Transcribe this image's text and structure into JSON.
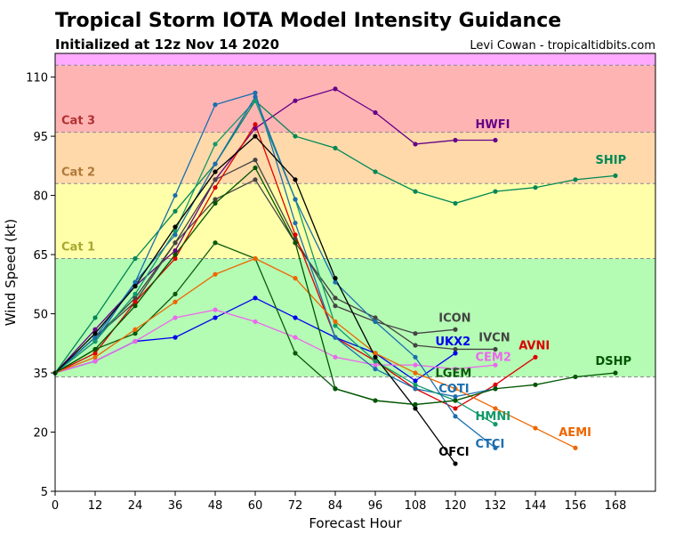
{
  "header": {
    "title": "Tropical Storm IOTA Model Intensity Guidance",
    "subtitle": "Initialized at 12z Nov 14 2020",
    "credit": "Levi Cowan - tropicaltidbits.com"
  },
  "chart_data": {
    "type": "line",
    "xlabel": "Forecast Hour",
    "ylabel": "Wind Speed (kt)",
    "xlim": [
      0,
      180
    ],
    "ylim": [
      5,
      116
    ],
    "xticks": [
      0,
      12,
      24,
      36,
      48,
      60,
      72,
      84,
      96,
      108,
      120,
      132,
      144,
      156,
      168
    ],
    "yticks": [
      5,
      20,
      35,
      50,
      65,
      80,
      95,
      110
    ],
    "bands": [
      {
        "from": 5,
        "to": 34,
        "color": "#ffffff"
      },
      {
        "from": 34,
        "to": 64,
        "color": "#b4fbb4"
      },
      {
        "from": 64,
        "to": 83,
        "color": "#ffffaa"
      },
      {
        "from": 83,
        "to": 96,
        "color": "#ffd9aa"
      },
      {
        "from": 96,
        "to": 113,
        "color": "#ffb4b4"
      },
      {
        "from": 113,
        "to": 116,
        "color": "#ffaaff"
      }
    ],
    "thresholds": [
      34,
      64,
      83,
      96,
      113
    ],
    "category_labels": [
      {
        "text": "Cat 3",
        "y": 96,
        "color": "#b03030"
      },
      {
        "text": "Cat 2",
        "y": 83,
        "color": "#b07a3a"
      },
      {
        "text": "Cat 1",
        "y": 64,
        "color": "#a8a830"
      }
    ],
    "series": [
      {
        "name": "HWFI",
        "color": "#660088",
        "x": [
          0,
          12,
          24,
          36,
          48,
          60,
          72,
          84,
          96,
          108,
          120,
          132
        ],
        "values": [
          35,
          46,
          57,
          66,
          84,
          97,
          104,
          107,
          101,
          93,
          94,
          94
        ],
        "label_at": [
          126,
          97
        ]
      },
      {
        "name": "SHIP",
        "color": "#008855",
        "x": [
          0,
          12,
          24,
          36,
          48,
          60,
          72,
          84,
          96,
          108,
          120,
          132,
          144,
          156,
          168
        ],
        "values": [
          35,
          49,
          64,
          76,
          88,
          104,
          95,
          92,
          86,
          81,
          78,
          81,
          82,
          84,
          85
        ],
        "label_at": [
          162,
          88
        ]
      },
      {
        "name": "ICON",
        "color": "#444444",
        "x": [
          0,
          12,
          24,
          36,
          48,
          60,
          72,
          84,
          96,
          108,
          120
        ],
        "values": [
          35,
          44,
          53,
          68,
          84,
          89,
          69,
          52,
          48,
          45,
          46
        ],
        "label_at": [
          115,
          48
        ]
      },
      {
        "name": "IVCN",
        "color": "#444444",
        "x": [
          0,
          12,
          24,
          36,
          48,
          60,
          72,
          84,
          96,
          108,
          120,
          132
        ],
        "values": [
          35,
          44,
          54,
          68,
          79,
          84,
          68,
          54,
          49,
          42,
          41,
          41
        ],
        "label_at": [
          127,
          43
        ]
      },
      {
        "name": "AVNI",
        "color": "#dd0000",
        "x": [
          0,
          12,
          24,
          36,
          48,
          60,
          72,
          84,
          96,
          108,
          120,
          132,
          144
        ],
        "values": [
          35,
          40,
          53,
          64,
          82,
          98,
          70,
          44,
          38,
          31,
          26,
          32,
          39
        ],
        "label_at": [
          139,
          41
        ]
      },
      {
        "name": "UKX2",
        "color": "#0000ee",
        "x": [
          0,
          12,
          24,
          36,
          48,
          60,
          72,
          84,
          96,
          108,
          120
        ],
        "values": [
          35,
          38,
          43,
          44,
          49,
          54,
          49,
          44,
          40,
          33,
          40
        ],
        "label_at": [
          114,
          42
        ]
      },
      {
        "name": "CEM2",
        "color": "#ee66ee",
        "x": [
          0,
          12,
          24,
          36,
          48,
          60,
          72,
          84,
          96,
          108,
          120,
          132
        ],
        "values": [
          35,
          38,
          43,
          49,
          51,
          48,
          44,
          39,
          37,
          37,
          36,
          37
        ],
        "label_at": [
          126,
          38
        ]
      },
      {
        "name": "LGEM",
        "color": "#0a5a0a",
        "x": [
          0,
          12,
          24,
          36,
          48,
          60,
          72,
          84,
          96,
          108,
          120
        ],
        "values": [
          35,
          41,
          45,
          55,
          68,
          64,
          40,
          31,
          28,
          27,
          28
        ],
        "label_at": [
          114,
          34
        ]
      },
      {
        "name": "COTI",
        "color": "#1a6fb0",
        "x": [
          0,
          12,
          24,
          36,
          48,
          60,
          72,
          84,
          96,
          108,
          120,
          132
        ],
        "values": [
          35,
          43,
          58,
          80,
          103,
          106,
          73,
          44,
          36,
          31,
          29,
          31
        ],
        "label_at": [
          115,
          30
        ]
      },
      {
        "name": "HMNI",
        "color": "#119a6a",
        "x": [
          0,
          12,
          24,
          36,
          48,
          60,
          72,
          84,
          96,
          108,
          120,
          132
        ],
        "values": [
          35,
          43,
          55,
          71,
          93,
          104,
          79,
          47,
          38,
          32,
          28,
          22
        ],
        "label_at": [
          126,
          23
        ]
      },
      {
        "name": "CTCI",
        "color": "#1a6fb0",
        "x": [
          0,
          12,
          24,
          36,
          48,
          60,
          72,
          84,
          96,
          108,
          120,
          132
        ],
        "values": [
          35,
          44,
          58,
          70,
          88,
          105,
          79,
          58,
          48,
          39,
          24,
          16
        ],
        "label_at": [
          126,
          16
        ]
      },
      {
        "name": "AEMI",
        "color": "#ee6600",
        "x": [
          0,
          12,
          24,
          36,
          48,
          60,
          72,
          84,
          96,
          108,
          120,
          132,
          144,
          156
        ],
        "values": [
          35,
          39,
          46,
          53,
          60,
          64,
          59,
          48,
          40,
          35,
          31,
          26,
          21,
          16
        ],
        "label_at": [
          151,
          19
        ]
      },
      {
        "name": "OFCI",
        "color": "#000000",
        "x": [
          0,
          12,
          24,
          36,
          48,
          60,
          72,
          84,
          96,
          108,
          120
        ],
        "values": [
          35,
          45,
          57,
          72,
          86,
          95,
          84,
          59,
          39,
          26,
          12
        ],
        "label_at": [
          115,
          14
        ]
      },
      {
        "name": "DSHP",
        "color": "#005500",
        "x": [
          0,
          12,
          24,
          36,
          48,
          60,
          72,
          84,
          96,
          108,
          120,
          132,
          144,
          156,
          168
        ],
        "values": [
          35,
          41,
          52,
          65,
          78,
          87,
          68,
          31,
          28,
          27,
          28,
          31,
          32,
          34,
          35
        ],
        "label_at": [
          162,
          37
        ]
      }
    ]
  }
}
